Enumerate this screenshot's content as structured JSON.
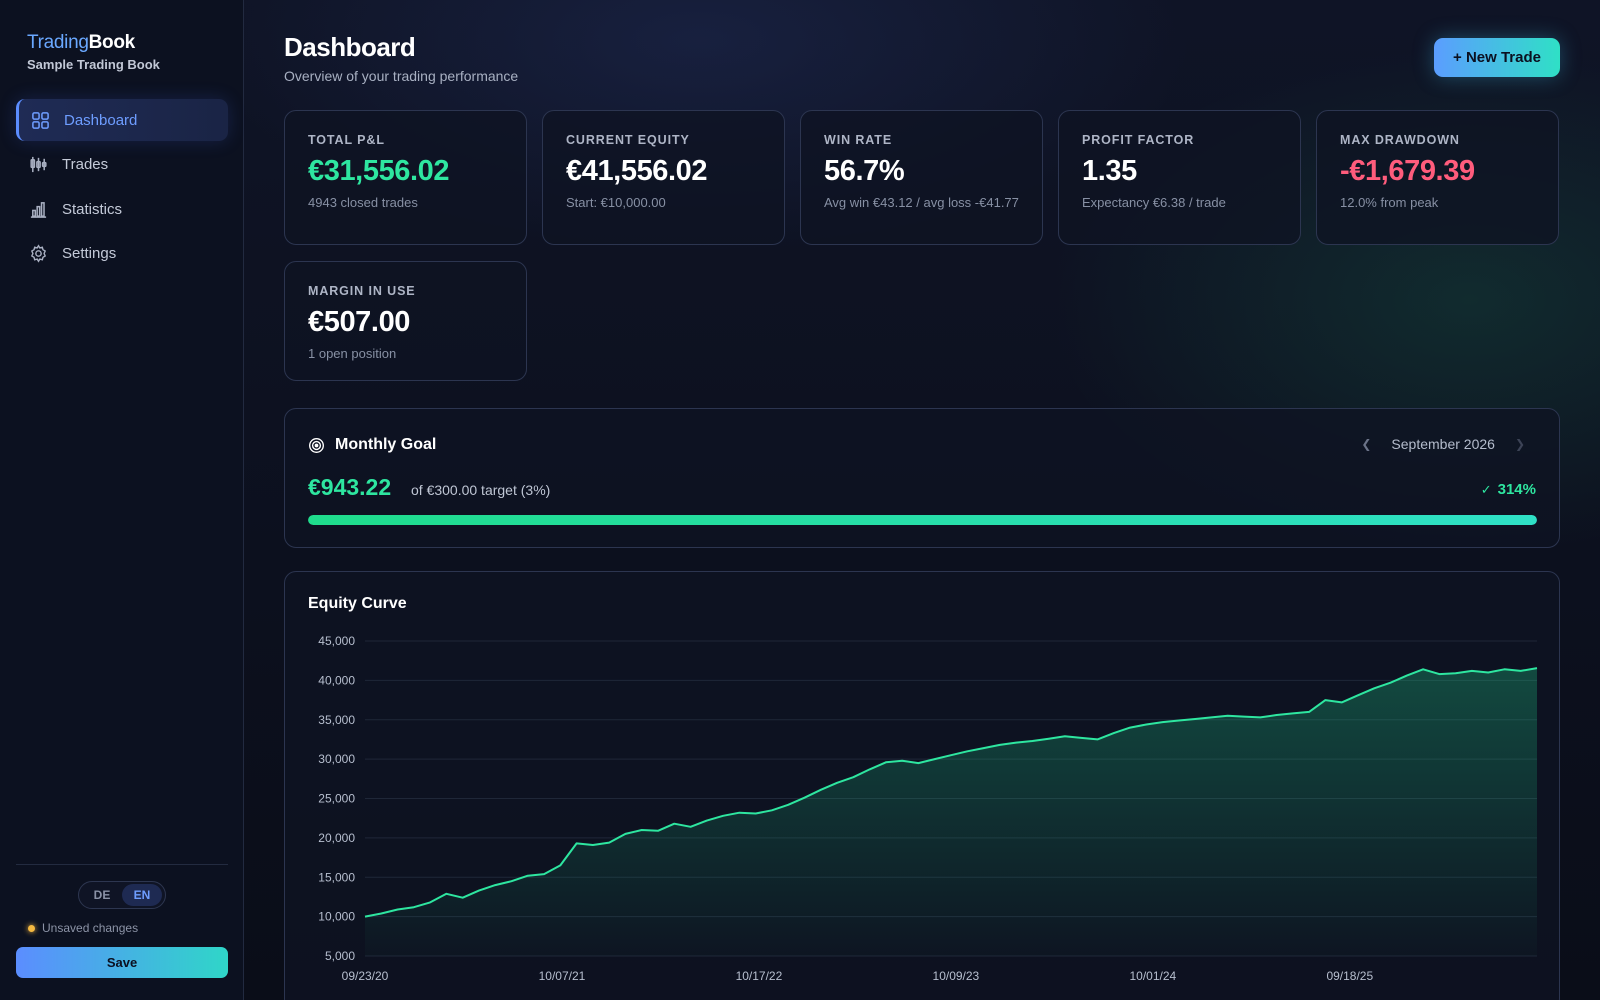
{
  "sidebar": {
    "brand_part1": "Trading",
    "brand_part2": "Book",
    "subtitle": "Sample Trading Book",
    "nav": [
      {
        "label": "Dashboard",
        "icon": "grid-icon",
        "active": true
      },
      {
        "label": "Trades",
        "icon": "candlestick-icon",
        "active": false
      },
      {
        "label": "Statistics",
        "icon": "bar-chart-icon",
        "active": false
      },
      {
        "label": "Settings",
        "icon": "gear-icon",
        "active": false
      }
    ],
    "lang_de": "DE",
    "lang_en": "EN",
    "lang_selected": "EN",
    "unsaved": "Unsaved changes",
    "save_label": "Save"
  },
  "header": {
    "title": "Dashboard",
    "subtitle": "Overview of your trading performance",
    "new_trade_label": "+ New Trade"
  },
  "kpis": [
    {
      "label": "TOTAL P&L",
      "value": "€31,556.02",
      "sub": "4943 closed trades",
      "tone": "green"
    },
    {
      "label": "CURRENT EQUITY",
      "value": "€41,556.02",
      "sub": "Start: €10,000.00",
      "tone": "white"
    },
    {
      "label": "WIN RATE",
      "value": "56.7%",
      "sub": "Avg win €43.12 / avg loss -€41.77",
      "tone": "white"
    },
    {
      "label": "PROFIT FACTOR",
      "value": "1.35",
      "sub": "Expectancy €6.38 / trade",
      "tone": "white"
    },
    {
      "label": "MAX DRAWDOWN",
      "value": "-€1,679.39",
      "sub": "12.0% from peak",
      "tone": "red"
    },
    {
      "label": "MARGIN IN USE",
      "value": "€507.00",
      "sub": "1 open position",
      "tone": "white"
    }
  ],
  "goal": {
    "title": "Monthly Goal",
    "month": "September 2026",
    "amount": "€943.22",
    "target_text": "of €300.00 target (3%)",
    "percent_text": "314%",
    "progress_fraction": 1.0
  },
  "colors": {
    "accent_blue": "#5b8dff",
    "accent_green": "#2ee6a0",
    "accent_red": "#ff5c7c",
    "accent_teal": "#2fe0c6"
  },
  "chart_data": {
    "type": "area",
    "title": "Equity Curve",
    "ylim": [
      5000,
      45000
    ],
    "y_ticks": [
      "5,000",
      "10,000",
      "15,000",
      "20,000",
      "25,000",
      "30,000",
      "35,000",
      "40,000",
      "45,000"
    ],
    "x_ticks": [
      "09/23/20",
      "10/07/21",
      "10/17/22",
      "10/09/23",
      "10/01/24",
      "09/18/25"
    ],
    "grid": true,
    "legend": "none",
    "x": [
      0,
      1,
      2,
      3,
      4,
      5,
      6,
      7,
      8,
      9,
      10,
      11,
      12,
      13,
      14,
      15,
      16,
      17,
      18,
      19,
      20,
      21,
      22,
      23,
      24,
      25,
      26,
      27,
      28,
      29,
      30,
      31,
      32,
      33,
      34,
      35,
      36,
      37,
      38,
      39,
      40,
      41,
      42,
      43,
      44,
      45,
      46,
      47,
      48,
      49,
      50,
      51,
      52,
      53,
      54,
      55,
      56,
      57,
      58,
      59,
      60,
      61,
      62,
      63,
      64,
      65,
      66,
      67,
      68,
      69,
      70,
      71,
      72
    ],
    "values": [
      10000,
      10400,
      10900,
      11200,
      11800,
      12900,
      12400,
      13300,
      14000,
      14500,
      15200,
      15400,
      16500,
      19300,
      19100,
      19400,
      20500,
      21000,
      20900,
      21800,
      21400,
      22200,
      22800,
      23200,
      23100,
      23500,
      24200,
      25100,
      26100,
      27000,
      27700,
      28700,
      29600,
      29800,
      29500,
      30000,
      30500,
      31000,
      31400,
      31800,
      32100,
      32300,
      32600,
      32900,
      32700,
      32500,
      33300,
      34000,
      34400,
      34700,
      34900,
      35100,
      35300,
      35500,
      35400,
      35300,
      35600,
      35800,
      36000,
      37500,
      37200,
      38100,
      39000,
      39700,
      40600,
      41400,
      40800,
      40900,
      41200,
      41000,
      41400,
      41200,
      41556
    ]
  }
}
